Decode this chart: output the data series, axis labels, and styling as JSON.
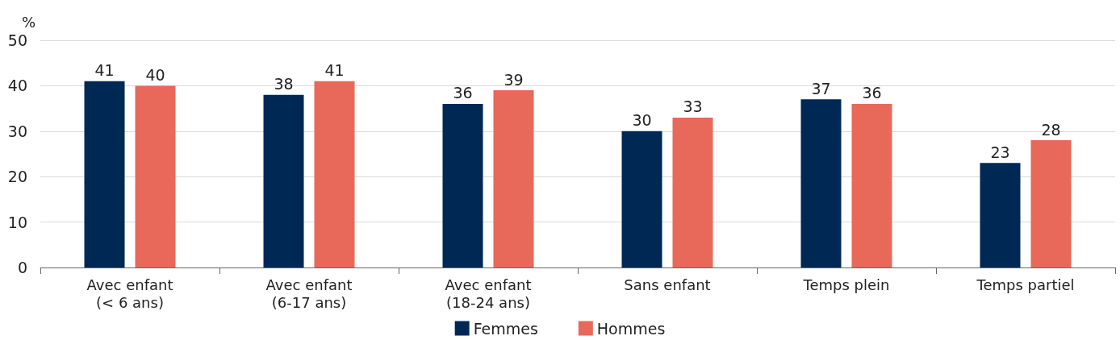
{
  "chart_data": {
    "type": "bar",
    "ylabel": "%",
    "categories": [
      "Avec enfant\n(< 6 ans)",
      "Avec enfant\n(6-17 ans)",
      "Avec enfant\n(18-24 ans)",
      "Sans enfant",
      "Temps plein",
      "Temps partiel"
    ],
    "series": [
      {
        "name": "Femmes",
        "color": "#002855",
        "values": [
          41,
          38,
          36,
          30,
          37,
          23
        ]
      },
      {
        "name": "Hommes",
        "color": "#e8695a",
        "values": [
          40,
          41,
          39,
          33,
          36,
          28
        ]
      }
    ],
    "ylim": [
      0,
      50
    ],
    "yticks": [
      0,
      10,
      20,
      30,
      40,
      50
    ],
    "grid": "y",
    "legend": "bottom",
    "data_labels": true
  }
}
